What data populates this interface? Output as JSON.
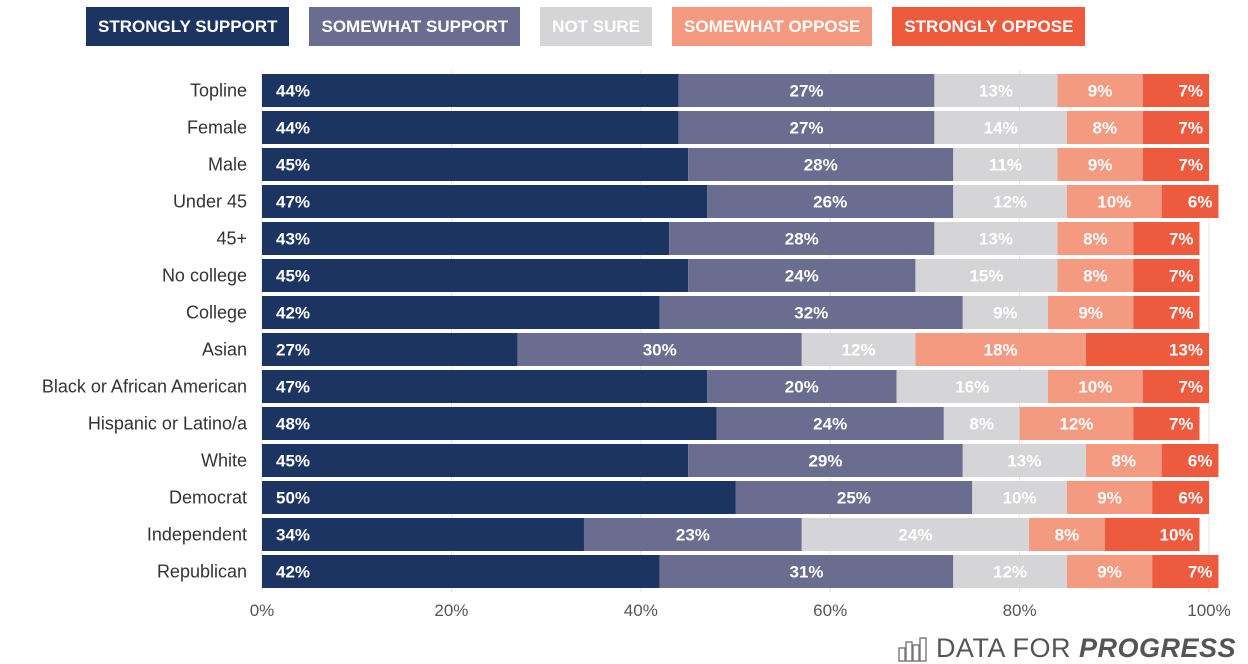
{
  "chart_data": {
    "type": "bar",
    "orientation": "horizontal",
    "stacked": true,
    "legend_position": "top",
    "grid": true,
    "xlim": [
      0,
      100
    ],
    "x_ticks": [
      "0%",
      "20%",
      "40%",
      "60%",
      "80%",
      "100%"
    ],
    "categories": [
      "Topline",
      "Female",
      "Male",
      "Under 45",
      "45+",
      "No college",
      "College",
      "Asian",
      "Black or African American",
      "Hispanic or Latino/a",
      "White",
      "Democrat",
      "Independent",
      "Republican"
    ],
    "series": [
      {
        "name": "STRONGLY SUPPORT",
        "color": "#1c3461",
        "label_color": "#ffffff",
        "values": [
          44,
          44,
          45,
          47,
          43,
          45,
          42,
          27,
          47,
          48,
          45,
          50,
          34,
          42
        ]
      },
      {
        "name": "SOMEWHAT SUPPORT",
        "color": "#6a6d8f",
        "label_color": "#ffffff",
        "values": [
          27,
          27,
          28,
          26,
          28,
          24,
          32,
          30,
          20,
          24,
          29,
          25,
          23,
          31
        ]
      },
      {
        "name": "NOT SURE",
        "color": "#d5d5d7",
        "label_color": "#ffffff",
        "values": [
          13,
          14,
          11,
          12,
          13,
          15,
          9,
          12,
          16,
          8,
          13,
          10,
          24,
          12
        ]
      },
      {
        "name": "SOMEWHAT OPPOSE",
        "color": "#f39a80",
        "label_color": "#ffffff",
        "values": [
          9,
          8,
          9,
          10,
          8,
          8,
          9,
          18,
          10,
          12,
          8,
          9,
          8,
          9
        ]
      },
      {
        "name": "STRONGLY OPPOSE",
        "color": "#ee5a3e",
        "label_color": "#ffffff",
        "values": [
          7,
          7,
          7,
          6,
          7,
          7,
          7,
          13,
          7,
          7,
          6,
          6,
          10,
          7
        ]
      }
    ],
    "title": "",
    "xlabel": "",
    "ylabel": ""
  },
  "brand": {
    "prefix": "DATA FOR",
    "suffix": "PROGRESS",
    "icon": "bar-chart-icon"
  }
}
